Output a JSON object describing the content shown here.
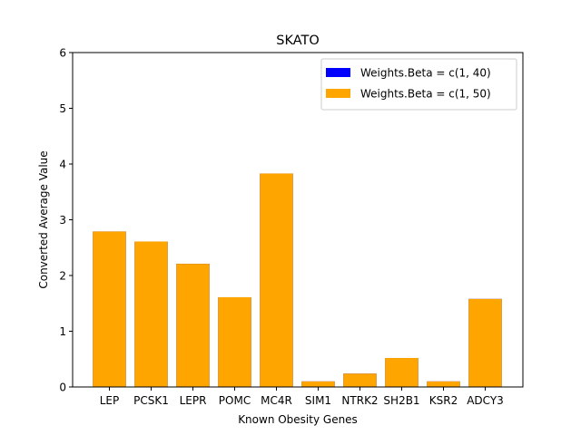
{
  "chart_data": {
    "type": "bar",
    "title": "SKATO",
    "xlabel": "Known Obesity Genes",
    "ylabel": "Converted Average Value",
    "ylim": [
      0,
      6
    ],
    "yticks": [
      0,
      1,
      2,
      3,
      4,
      5,
      6
    ],
    "grid": false,
    "legend_position": "top-right",
    "categories": [
      "LEP",
      "PCSK1",
      "LEPR",
      "POMC",
      "MC4R",
      "SIM1",
      "NTRK2",
      "SH2B1",
      "KSR2",
      "ADCY3"
    ],
    "series": [
      {
        "name": "Weights.Beta = c(1, 40)",
        "color": "#0000ff",
        "values": [
          2.79,
          2.61,
          2.21,
          1.61,
          3.83,
          0.1,
          0.24,
          0.52,
          0.1,
          1.58
        ]
      },
      {
        "name": "Weights.Beta = c(1, 50)",
        "color": "#ffa500",
        "values": [
          2.79,
          2.61,
          2.21,
          1.61,
          3.83,
          0.1,
          0.24,
          0.52,
          0.1,
          1.58
        ]
      }
    ]
  }
}
